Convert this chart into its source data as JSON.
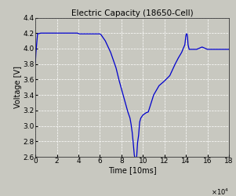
{
  "title": "Electric Capacity (18650-Cell)",
  "xlabel": "Time [10ms]",
  "ylabel": "Voltage [V]",
  "xlim": [
    0,
    180000
  ],
  "ylim": [
    2.6,
    4.4
  ],
  "xticks": [
    0,
    20000,
    40000,
    60000,
    80000,
    100000,
    120000,
    140000,
    160000,
    180000
  ],
  "xtick_labels": [
    "0",
    "2",
    "4",
    "6",
    "8",
    "10",
    "12",
    "14",
    "16",
    "18"
  ],
  "yticks": [
    2.6,
    2.8,
    3.0,
    3.2,
    3.4,
    3.6,
    3.8,
    4.0,
    4.2,
    4.4
  ],
  "line_color": "#0000cd",
  "bg_color": "#c8c8c0",
  "grid_color": "#ffffff",
  "x": [
    0,
    500,
    2000,
    5000,
    10000,
    19000,
    39000,
    41000,
    59000,
    60000,
    61000,
    65000,
    70000,
    75000,
    78000,
    80000,
    82000,
    84000,
    86000,
    88000,
    89000,
    90000,
    90500,
    91000,
    92000,
    93000,
    94000,
    95000,
    96000,
    97000,
    98000,
    99000,
    100000,
    101000,
    103000,
    105000,
    110000,
    115000,
    120000,
    125000,
    130000,
    133000,
    136000,
    139000,
    140000,
    140500,
    141000,
    141500,
    142000,
    143000,
    144000,
    145000,
    148000,
    150000,
    155000,
    160000,
    165000,
    170000,
    175000,
    180000
  ],
  "y": [
    3.82,
    3.95,
    4.19,
    4.2,
    4.2,
    4.2,
    4.2,
    4.19,
    4.19,
    4.19,
    4.18,
    4.1,
    3.95,
    3.75,
    3.58,
    3.48,
    3.38,
    3.28,
    3.18,
    3.1,
    3.02,
    2.92,
    2.85,
    2.78,
    2.62,
    2.56,
    2.56,
    2.78,
    2.88,
    3.05,
    3.1,
    3.12,
    3.14,
    3.15,
    3.17,
    3.18,
    3.4,
    3.52,
    3.58,
    3.65,
    3.8,
    3.88,
    3.95,
    4.05,
    4.17,
    4.19,
    4.19,
    4.15,
    4.05,
    3.99,
    3.99,
    3.99,
    3.99,
    3.99,
    4.02,
    3.99,
    3.99,
    3.99,
    3.99,
    3.99
  ]
}
